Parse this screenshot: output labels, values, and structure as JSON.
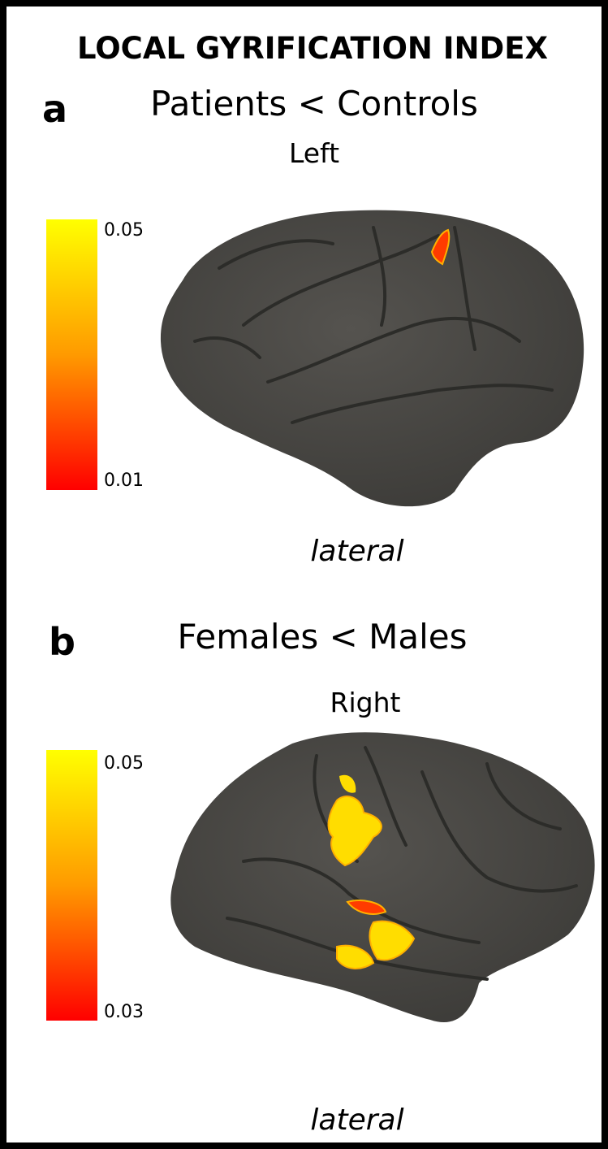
{
  "header": {
    "title": "LOCAL GYRIFICATION INDEX"
  },
  "panels": [
    {
      "letter": "a",
      "comparison": "Patients < Controls",
      "hemisphere": "Left",
      "colorbar": {
        "max": "0.05",
        "min": "0.01"
      },
      "view": "lateral"
    },
    {
      "letter": "b",
      "comparison": "Females < Males",
      "hemisphere": "Right",
      "colorbar": {
        "max": "0.05",
        "min": "0.03"
      },
      "view": "lateral"
    }
  ]
}
